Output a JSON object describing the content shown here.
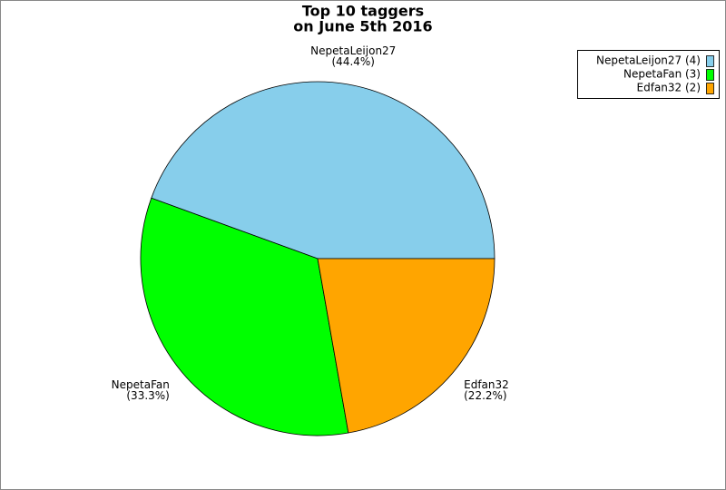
{
  "chart_data": {
    "type": "pie",
    "title": "Top 10 taggers",
    "subtitle": "on June 5th 2016",
    "categories": [
      "NepetaLeijon27",
      "NepetaFan",
      "Edfan32"
    ],
    "values": [
      4,
      3,
      2
    ],
    "percent_labels": [
      "(44.4%)",
      "(33.3%)",
      "(22.2%)"
    ],
    "legend_labels": [
      "NepetaLeijon27 (4)",
      "NepetaFan (3)",
      "Edfan32 (2)"
    ],
    "colors": [
      "#87ceeb",
      "#00ff00",
      "#ffa500"
    ],
    "legend": "upper right"
  }
}
